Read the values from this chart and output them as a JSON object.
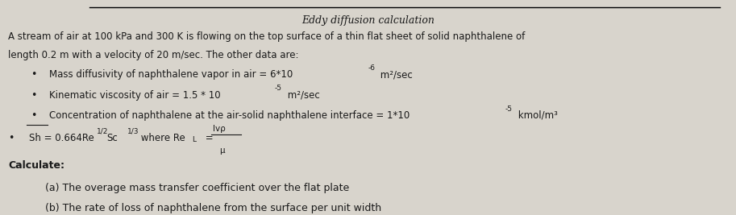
{
  "title": "Eddy diffusion calculation",
  "bg_color": "#d8d4cc",
  "text_color": "#1a1a1a",
  "line1": "A stream of air at 100 kPa and 300 K is flowing on the top surface of a thin flat sheet of solid naphthalene of",
  "line2": "length 0.2 m with a velocity of 20 m/sec. The other data are:",
  "bullet1": "Mass diffusivity of naphthalene vapor in air = 6*10",
  "bullet1_sup": "-6",
  "bullet1_end": " m²/sec",
  "bullet2": "Kinematic viscosity of air = 1.5 * 10",
  "bullet2_sup": "-5",
  "bullet2_end": " m²/sec",
  "bullet3": "Concentration of naphthalene at the air-solid naphthalene interface = 1*10",
  "bullet3_sup": "-5",
  "bullet3_end": " kmol/m³",
  "formula_line": "Sh = 0.664Re",
  "formula_sup1": "1/2",
  "formula_mid": "Sc",
  "formula_sup2": "1/3",
  "formula_end": " where Re",
  "formula_sub": "L",
  "formula_eq": " =",
  "formula_fraction_num": "lvρ",
  "formula_fraction_den": "μ",
  "calc_header": "Calculate:",
  "calc_a": "(a) The overage mass transfer coefficient over the flat plate",
  "calc_b": "(b) The rate of loss of naphthalene from the surface per unit width"
}
